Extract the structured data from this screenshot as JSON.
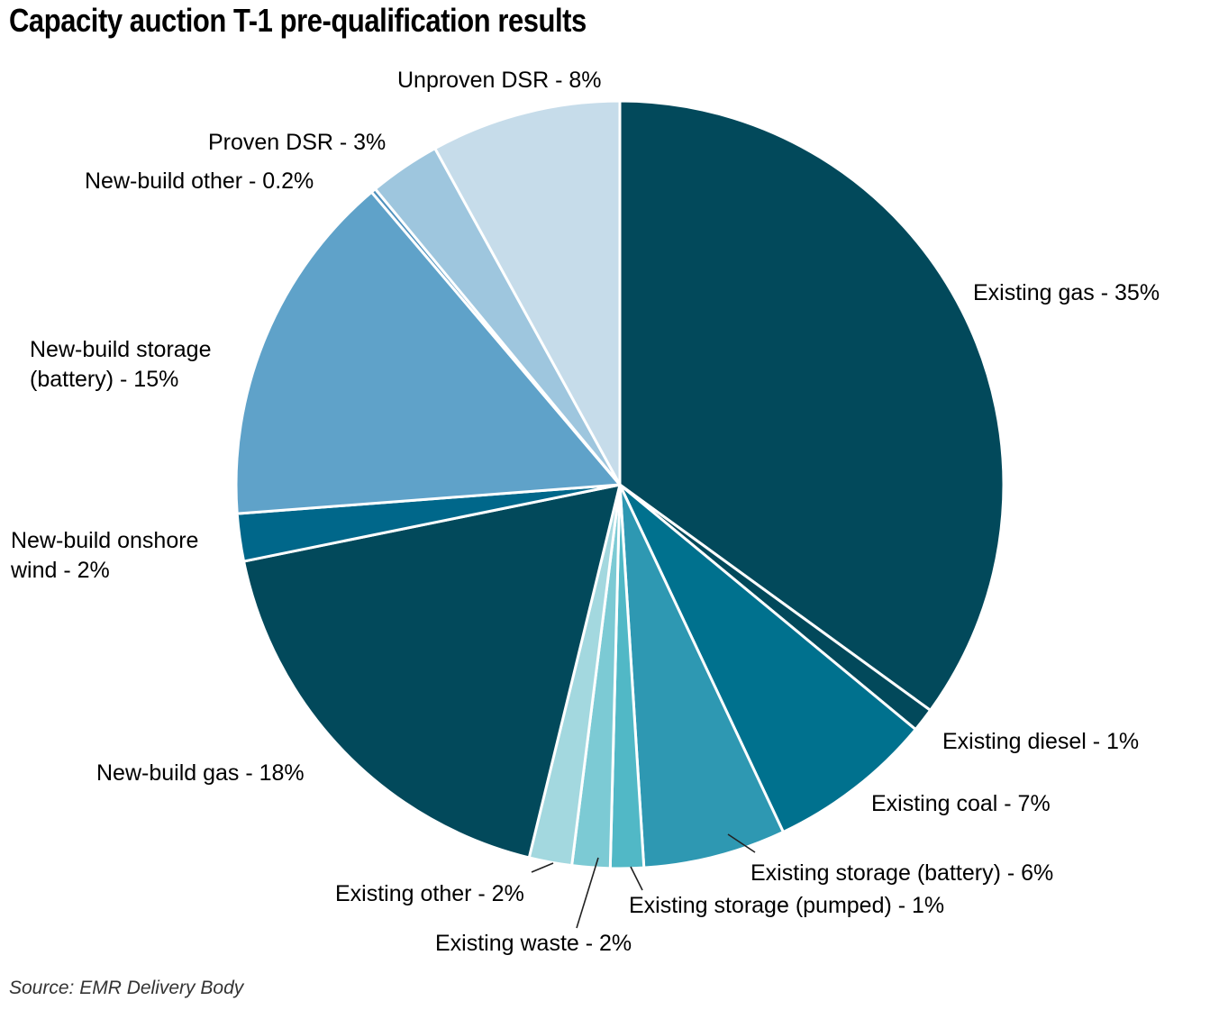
{
  "chart_data": {
    "type": "pie",
    "title": "Capacity auction T-1 pre-qualification results",
    "source": "Source: EMR Delivery Body",
    "slices": [
      {
        "label": "Existing gas - 35%",
        "value": 35,
        "color": "#02495b"
      },
      {
        "label": "Existing diesel - 1%",
        "value": 1,
        "color": "#02495b"
      },
      {
        "label": "Existing coal - 7%",
        "value": 7,
        "color": "#00718e"
      },
      {
        "label": "Existing storage (battery) - 6%",
        "value": 6,
        "color": "#2e98b2"
      },
      {
        "label": "Existing storage (pumped) - 1%",
        "value": 1.4,
        "color": "#51b8c6"
      },
      {
        "label": "Existing waste - 2%",
        "value": 1.6,
        "color": "#7ccad4"
      },
      {
        "label": "Existing other - 2%",
        "value": 1.8,
        "color": "#a3d8df"
      },
      {
        "label": "New-build gas - 18%",
        "value": 18,
        "color": "#02495b"
      },
      {
        "label": "New-build onshore wind - 2%",
        "value": 2,
        "color": "#00678a"
      },
      {
        "label": "New-build storage (battery) - 15%",
        "value": 15,
        "color": "#5fa2c9"
      },
      {
        "label": "New-build other - 0.2%",
        "value": 0.2,
        "color": "#4d90bd"
      },
      {
        "label": "Proven DSR - 3%",
        "value": 3,
        "color": "#9ec6de"
      },
      {
        "label": "Unproven DSR - 8%",
        "value": 8,
        "color": "#c6dcea"
      }
    ]
  }
}
